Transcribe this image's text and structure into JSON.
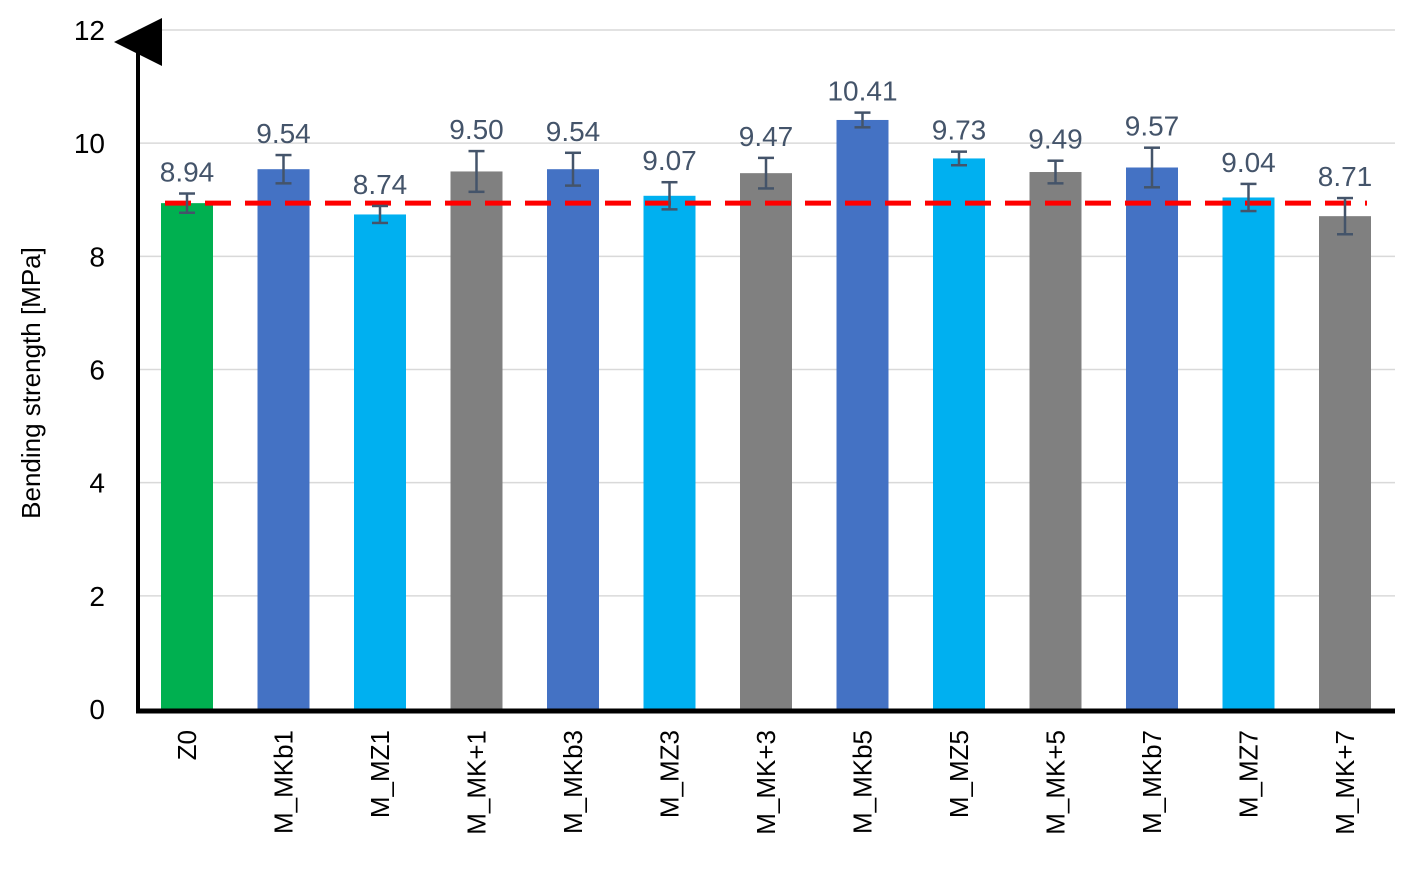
{
  "chart_data": {
    "type": "bar",
    "title": "",
    "xlabel": "",
    "ylabel": "Bending strength [MPa]",
    "ylim": [
      0,
      12
    ],
    "yticks": [
      0,
      2,
      4,
      6,
      8,
      10,
      12
    ],
    "grid": true,
    "legend": "none",
    "categories": [
      "Z0",
      "M_MKb1",
      "M_MZ1",
      "M_MK+1",
      "M_MKb3",
      "M_MZ3",
      "M_MK+3",
      "M_MKb5",
      "M_MZ5",
      "M_MK+5",
      "M_MKb7",
      "M_MZ7",
      "M_MK+7"
    ],
    "values": [
      8.94,
      9.54,
      8.74,
      9.5,
      9.54,
      9.07,
      9.47,
      10.41,
      9.73,
      9.49,
      9.57,
      9.04,
      8.71
    ],
    "value_labels": [
      "8.94",
      "9.54",
      "8.74",
      "9.50",
      "9.54",
      "9.07",
      "9.47",
      "10.41",
      "9.73",
      "9.49",
      "9.57",
      "9.04",
      "8.71"
    ],
    "errors": [
      0.17,
      0.25,
      0.15,
      0.36,
      0.29,
      0.24,
      0.27,
      0.13,
      0.12,
      0.2,
      0.35,
      0.24,
      0.32
    ],
    "bar_colors": [
      "#00b050",
      "#4472c4",
      "#00b0f0",
      "#808080",
      "#4472c4",
      "#00b0f0",
      "#808080",
      "#4472c4",
      "#00b0f0",
      "#808080",
      "#4472c4",
      "#00b0f0",
      "#808080"
    ],
    "reference_line": {
      "value": 8.94,
      "color": "#ff0000",
      "style": "dashed"
    },
    "colors": {
      "axis": "#000000",
      "grid": "#d9d9d9",
      "error_bar": "#44546a",
      "data_label": "#44546a"
    }
  }
}
